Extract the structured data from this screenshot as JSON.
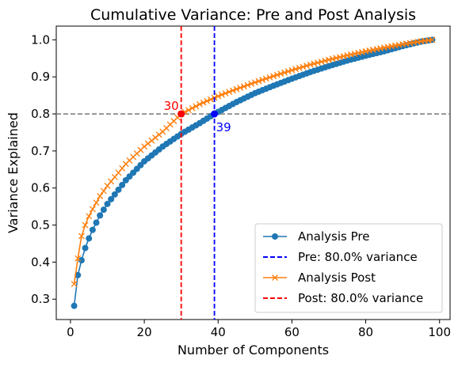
{
  "chart_data": {
    "type": "line",
    "title": "Cumulative Variance: Pre and Post Analysis",
    "xlabel": "Number of Components",
    "ylabel": "Variance Explained",
    "xlim": [
      -3.85,
      102.85
    ],
    "ylim": [
      0.245,
      1.037
    ],
    "xticks": [
      0,
      20,
      40,
      60,
      80,
      100
    ],
    "yticks": [
      0.3,
      0.4,
      0.5,
      0.6,
      0.7,
      0.8,
      0.9,
      1.0
    ],
    "grid": false,
    "legend_position": "lower-right",
    "threshold": {
      "y": 0.8,
      "color": "#808080",
      "style": "dashed"
    },
    "n_components": 98,
    "series": [
      {
        "name": "Analysis Pre",
        "color": "#1f77b4",
        "marker": "circle",
        "pre_curve_points": [
          [
            1,
            0.282
          ],
          [
            2,
            0.365
          ],
          [
            3,
            0.405
          ],
          [
            4,
            0.438
          ],
          [
            5,
            0.464
          ],
          [
            6,
            0.487
          ],
          [
            8,
            0.526
          ],
          [
            10,
            0.557
          ],
          [
            15,
            0.621
          ],
          [
            20,
            0.672
          ],
          [
            25,
            0.712
          ],
          [
            30,
            0.746
          ],
          [
            35,
            0.775
          ],
          [
            39,
            0.8
          ],
          [
            45,
            0.832
          ],
          [
            50,
            0.856
          ],
          [
            55,
            0.876
          ],
          [
            60,
            0.895
          ],
          [
            65,
            0.913
          ],
          [
            70,
            0.929
          ],
          [
            75,
            0.944
          ],
          [
            80,
            0.957
          ],
          [
            85,
            0.969
          ],
          [
            90,
            0.983
          ],
          [
            95,
            0.995
          ],
          [
            98,
            1.0
          ]
        ]
      },
      {
        "name": "Pre: 80.0% variance",
        "color": "#0000ff",
        "style": "dashed",
        "x": 39
      },
      {
        "name": "Analysis Post",
        "color": "#ff7f0e",
        "marker": "x",
        "post_curve_points": [
          [
            1,
            0.341
          ],
          [
            2,
            0.41
          ],
          [
            3,
            0.47
          ],
          [
            4,
            0.5
          ],
          [
            5,
            0.524
          ],
          [
            6,
            0.543
          ],
          [
            8,
            0.578
          ],
          [
            10,
            0.606
          ],
          [
            15,
            0.665
          ],
          [
            20,
            0.712
          ],
          [
            25,
            0.752
          ],
          [
            30,
            0.8
          ],
          [
            35,
            0.826
          ],
          [
            40,
            0.848
          ],
          [
            45,
            0.867
          ],
          [
            50,
            0.885
          ],
          [
            55,
            0.902
          ],
          [
            60,
            0.918
          ],
          [
            65,
            0.933
          ],
          [
            70,
            0.946
          ],
          [
            75,
            0.958
          ],
          [
            80,
            0.969
          ],
          [
            85,
            0.979
          ],
          [
            90,
            0.988
          ],
          [
            95,
            0.996
          ],
          [
            98,
            1.0
          ]
        ]
      },
      {
        "name": "Post: 80.0% variance",
        "color": "#ff0000",
        "style": "dashed",
        "x": 30
      }
    ],
    "annotations": [
      {
        "text": "39",
        "x": 39,
        "y": 0.8,
        "color": "#0000ff"
      },
      {
        "text": "30",
        "x": 30,
        "y": 0.8,
        "color": "#ff0000"
      }
    ]
  }
}
